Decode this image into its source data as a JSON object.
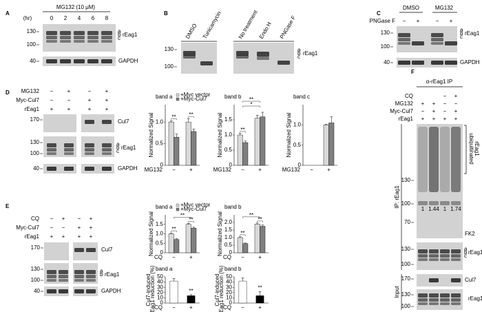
{
  "A": {
    "letter": "A",
    "treatment": "MG132 (10 μM)",
    "time_unit": "(hr)",
    "times": [
      "0",
      "2",
      "4",
      "6",
      "8"
    ],
    "mw": [
      "130",
      "100",
      "40"
    ],
    "bands": [
      "a",
      "b",
      "c"
    ],
    "target": "rEag1",
    "loading": "GAPDH"
  },
  "B": {
    "letter": "B",
    "lanes": [
      "DMSO",
      "Tunicamycin",
      "No treatment",
      "Endo H",
      "PNGase F"
    ],
    "mw": [
      "130",
      "100"
    ],
    "bands": [
      "a",
      "b",
      "c"
    ],
    "target": "rEag1"
  },
  "C": {
    "letter": "C",
    "groups": [
      "DMSO",
      "MG132"
    ],
    "treatment": "PNGase F",
    "signs": [
      "−",
      "+",
      "−",
      "+"
    ],
    "mw": [
      "130",
      "100",
      "40"
    ],
    "bands": [
      "a",
      "b",
      "c"
    ],
    "target": "rEag1",
    "loading": "GAPDH"
  },
  "D": {
    "letter": "D",
    "rows": [
      {
        "label": "MG132",
        "signs": [
          "−",
          "+",
          "−",
          "+"
        ]
      },
      {
        "label": "Myc-Cul7",
        "signs": [
          "−",
          "−",
          "+",
          "+"
        ]
      },
      {
        "label": "rEag1",
        "signs": [
          "+",
          "+",
          "+",
          "+"
        ]
      }
    ],
    "mw": [
      "170",
      "130",
      "100",
      "40"
    ],
    "blots": [
      "Cul7",
      "rEag1",
      "GAPDH"
    ],
    "bands": [
      "a",
      "b",
      "c"
    ],
    "charts": [
      {
        "type": "bar",
        "title": "band a",
        "ylabel": "Normalized Signal",
        "xlabel": "MG132",
        "groups": [
          "−",
          "+"
        ],
        "series": [
          {
            "name": "+Myc vector",
            "color": "#d9d9d9",
            "values": [
              1.0,
              1.0
            ],
            "errors": [
              0.03,
              0.08
            ]
          },
          {
            "name": "+Myc-Cul7",
            "color": "#7f7f7f",
            "values": [
              0.65,
              0.78
            ],
            "errors": [
              0.07,
              0.06
            ]
          }
        ],
        "ylim": [
          0,
          1.4
        ],
        "yticks": [
          0,
          0.5,
          {
            "value": 1,
            "label": "1.0"
          }
        ],
        "stars": [
          "**",
          "**"
        ]
      },
      {
        "type": "bar",
        "title": "band b",
        "ylabel": "Normalized Signal",
        "xlabel": "MG132",
        "groups": [
          "−",
          "+"
        ],
        "series": [
          {
            "color": "#d9d9d9",
            "values": [
              1.0,
              1.55
            ],
            "errors": [
              0.05,
              0.1
            ]
          },
          {
            "color": "#7f7f7f",
            "values": [
              0.75,
              1.6
            ],
            "errors": [
              0.05,
              0.15
            ]
          }
        ],
        "ylim": [
          0,
          2
        ],
        "yticks": [
          0,
          0.5,
          {
            "value": 1,
            "label": "1.0"
          },
          1.5
        ],
        "stars": [
          "**",
          "*",
          "**"
        ]
      },
      {
        "type": "bar",
        "title": "band c",
        "ylabel": "Normalized Signal",
        "xlabel": "MG132",
        "groups": [
          "−",
          "+"
        ],
        "series": [
          {
            "color": "#d9d9d9",
            "values": [
              null,
              1.0
            ],
            "errors": [
              null,
              0.02
            ]
          },
          {
            "color": "#7f7f7f",
            "values": [
              null,
              1.05
            ],
            "errors": [
              null,
              0.15
            ]
          }
        ],
        "ylim": [
          0,
          1.5
        ],
        "yticks": [
          0,
          0.5,
          {
            "value": 1,
            "label": "1.0"
          }
        ],
        "stars": []
      }
    ]
  },
  "E": {
    "letter": "E",
    "rows": [
      {
        "label": "CQ",
        "signs": [
          "−",
          "+",
          "−",
          "+"
        ]
      },
      {
        "label": "Myc-Cul7",
        "signs": [
          "−",
          "−",
          "+",
          "+"
        ]
      },
      {
        "label": "rEag1",
        "signs": [
          "+",
          "+",
          "+",
          "+"
        ]
      }
    ],
    "mw": [
      "170",
      "130",
      "100",
      "40"
    ],
    "blots": [
      "Cul7",
      "rEag1",
      "GAPDH"
    ],
    "bands": [
      "a",
      "b"
    ],
    "charts": [
      {
        "type": "bar",
        "title": "band a",
        "ylabel": "Normalized Signal",
        "xlabel": "CQ",
        "groups": [
          "−",
          "+"
        ],
        "series": [
          {
            "name": "+Myc vector",
            "color": "#d9d9d9",
            "values": [
              1.0,
              1.5
            ],
            "errors": [
              0.05,
              0.05
            ]
          },
          {
            "name": "+Myc-Cul7",
            "color": "#7f7f7f",
            "values": [
              0.7,
              1.3
            ],
            "errors": [
              0.04,
              0.05
            ]
          }
        ],
        "ylim": [
          0,
          2
        ],
        "yticks": [
          0,
          0.5,
          {
            "value": 1,
            "label": "1.0"
          },
          1.5
        ],
        "stars": [
          "**",
          "**",
          "**"
        ]
      },
      {
        "type": "bar",
        "title": "band b",
        "ylabel": "Normalized Signal",
        "xlabel": "CQ",
        "groups": [
          "−",
          "+"
        ],
        "series": [
          {
            "color": "#d9d9d9",
            "values": [
              1.0,
              1.9
            ],
            "errors": [
              0.05,
              0.06
            ]
          },
          {
            "color": "#7f7f7f",
            "values": [
              0.6,
              1.75
            ],
            "errors": [
              0.04,
              0.08
            ]
          }
        ],
        "ylim": [
          0,
          2.5
        ],
        "yticks": [
          0,
          0.5,
          {
            "value": 1,
            "label": "1.0"
          },
          1.5,
          {
            "value": 2,
            "label": "2.0"
          }
        ],
        "stars": [
          "**",
          "**",
          "**"
        ]
      },
      {
        "type": "bar",
        "title": "band a",
        "ylabel": [
          "Cul7-induced",
          "rEag1 reduction (%)"
        ],
        "xlabel": "CQ",
        "groups": [
          "−",
          "+"
        ],
        "values": [
          42,
          14
        ],
        "colors": [
          "#ffffff",
          "#000000"
        ],
        "errors": [
          5,
          2
        ],
        "ylim": [
          0,
          50
        ],
        "yticks": [
          0,
          10,
          20,
          30,
          40,
          50
        ],
        "stars": [
          "**"
        ]
      },
      {
        "type": "bar",
        "title": "band b",
        "ylabel": [
          "Cul7-induced",
          "rEag1 reduction (%)"
        ],
        "xlabel": "CQ",
        "groups": [
          "−",
          "+"
        ],
        "values": [
          42,
          14
        ],
        "colors": [
          "#ffffff",
          "#000000"
        ],
        "errors": [
          6,
          8
        ],
        "ylim": [
          0,
          50
        ],
        "yticks": [
          0,
          10,
          20,
          30,
          40,
          50
        ],
        "stars": [
          "**"
        ]
      }
    ]
  },
  "F": {
    "letter": "F",
    "title": "α-rEag1 IP",
    "rows": [
      {
        "label": "CQ",
        "signs": [
          "−",
          "+"
        ]
      },
      {
        "label": "MG132",
        "signs": [
          "+",
          "+",
          "−",
          "−"
        ]
      },
      {
        "label": "Myc-Cul7",
        "signs": [
          "−",
          "+",
          "−",
          "+"
        ]
      },
      {
        "label": "rEag1",
        "signs": [
          "+",
          "+",
          "+",
          "+"
        ]
      }
    ],
    "ub_label": [
      "ubiquitinated",
      "rEag1"
    ],
    "ip_label": "IP: rEag1",
    "input_label": "Input",
    "ratios": [
      "1",
      "1.44",
      "1",
      "1.74"
    ],
    "antibody": "FK2",
    "mw_ip": [
      "130",
      "100",
      "70"
    ],
    "mw_ip2": [
      "130",
      "100"
    ],
    "mw_input": [
      "170",
      "130",
      "100"
    ],
    "bands": [
      "a",
      "b",
      "c"
    ],
    "blots": [
      "rEag1",
      "Cul7",
      "rEag1"
    ]
  }
}
